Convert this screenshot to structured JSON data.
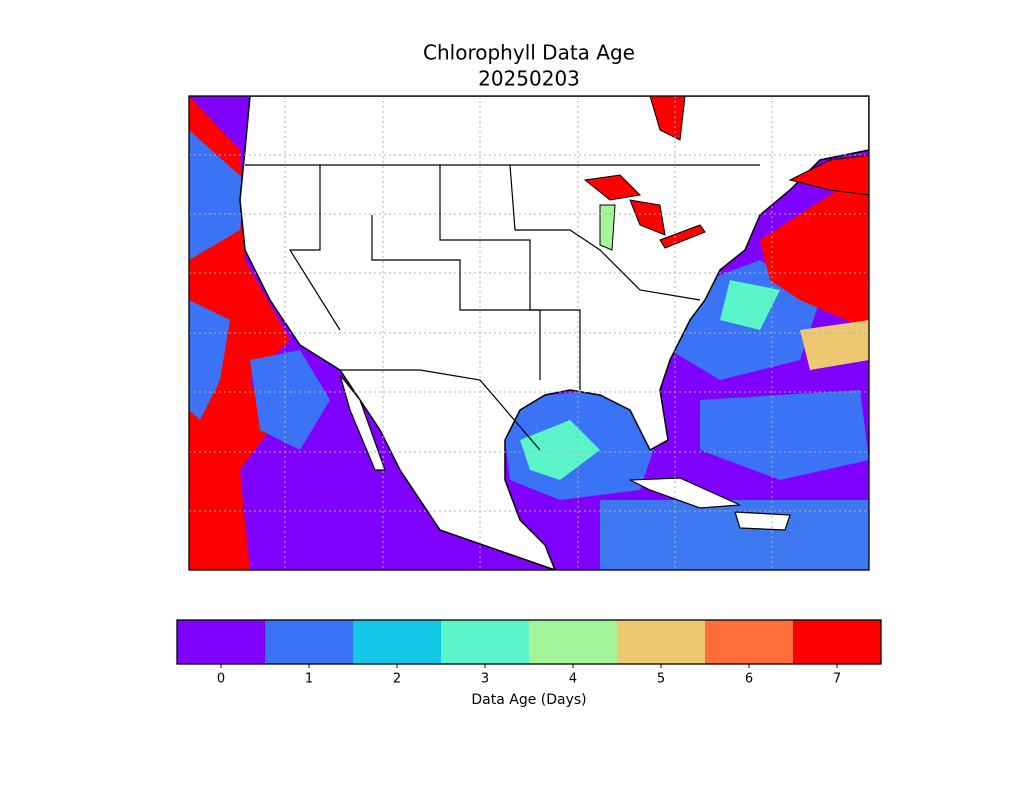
{
  "chart_data": {
    "type": "colorbar-map",
    "title": "Chlorophyll Data Age",
    "subtitle": "20250203",
    "colorbar": {
      "label": "Data Age (Days)",
      "ticks": [
        0,
        1,
        2,
        3,
        4,
        5,
        6,
        7
      ],
      "colors": [
        "#8000ff",
        "#3b73f6",
        "#12c8e6",
        "#5af5c8",
        "#a4f59a",
        "#ecc870",
        "#ff6e3a",
        "#ff0000"
      ]
    }
  }
}
